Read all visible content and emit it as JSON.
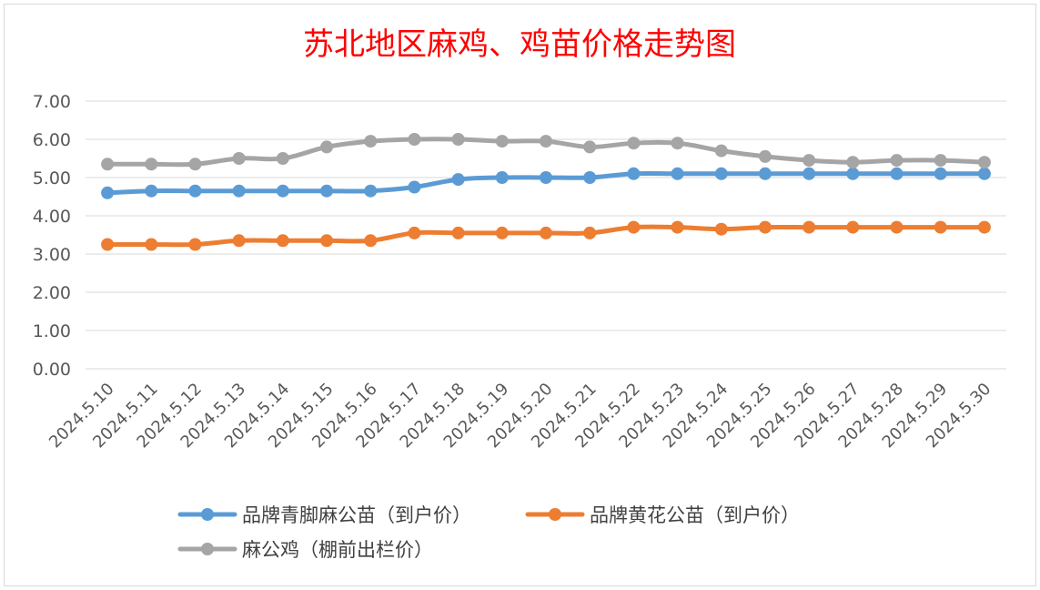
{
  "chart_data": {
    "type": "line",
    "title": "苏北地区麻鸡、鸡苗价格走势图",
    "xlabel": "",
    "ylabel": "",
    "ylim": [
      0,
      7
    ],
    "yticks": [
      "0.00",
      "1.00",
      "2.00",
      "3.00",
      "4.00",
      "5.00",
      "6.00",
      "7.00"
    ],
    "grid": true,
    "legend_position": "bottom",
    "categories": [
      "2024.5.10",
      "2024.5.11",
      "2024.5.12",
      "2024.5.13",
      "2024.5.14",
      "2024.5.15",
      "2024.5.16",
      "2024.5.17",
      "2024.5.18",
      "2024.5.19",
      "2024.5.20",
      "2024.5.21",
      "2024.5.22",
      "2024.5.23",
      "2024.5.24",
      "2024.5.25",
      "2024.5.26",
      "2024.5.27",
      "2024.5.28",
      "2024.5.29",
      "2024.5.30"
    ],
    "series": [
      {
        "name": "品牌青脚麻公苗（到户价）",
        "color": "#5b9bd5",
        "values": [
          4.6,
          4.65,
          4.65,
          4.65,
          4.65,
          4.65,
          4.65,
          4.75,
          4.95,
          5.0,
          5.0,
          5.0,
          5.1,
          5.1,
          5.1,
          5.1,
          5.1,
          5.1,
          5.1,
          5.1,
          5.1
        ]
      },
      {
        "name": "品牌黄花公苗（到户价）",
        "color": "#ed7d31",
        "values": [
          3.25,
          3.25,
          3.25,
          3.35,
          3.35,
          3.35,
          3.35,
          3.55,
          3.55,
          3.55,
          3.55,
          3.55,
          3.7,
          3.7,
          3.65,
          3.7,
          3.7,
          3.7,
          3.7,
          3.7,
          3.7
        ]
      },
      {
        "name": "麻公鸡（棚前出栏价）",
        "color": "#a5a5a5",
        "values": [
          5.35,
          5.35,
          5.35,
          5.5,
          5.5,
          5.8,
          5.95,
          6.0,
          6.0,
          5.95,
          5.95,
          5.8,
          5.9,
          5.9,
          5.7,
          5.55,
          5.45,
          5.4,
          5.45,
          5.45,
          5.4
        ]
      }
    ]
  }
}
